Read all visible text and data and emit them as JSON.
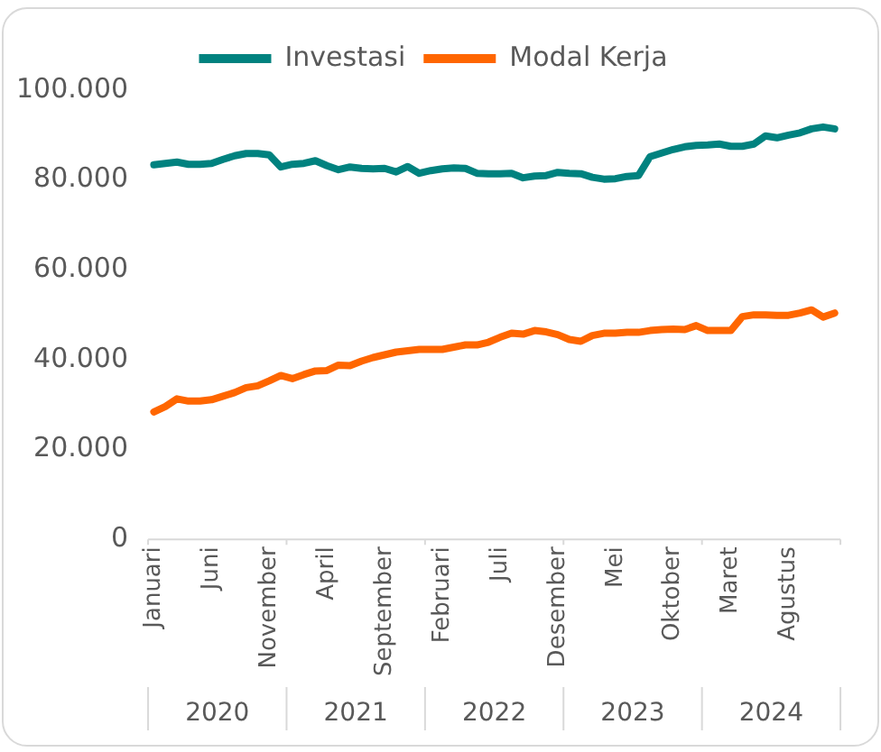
{
  "chart_data": {
    "type": "line",
    "categories": [
      "Januari",
      null,
      null,
      null,
      null,
      "Juni",
      null,
      null,
      null,
      null,
      "November",
      null,
      null,
      null,
      null,
      "April",
      null,
      null,
      null,
      null,
      "September",
      null,
      null,
      null,
      null,
      "Februari",
      null,
      null,
      null,
      null,
      "Juli",
      null,
      null,
      null,
      null,
      "Desember",
      null,
      null,
      null,
      null,
      "Mei",
      null,
      null,
      null,
      null,
      "Oktober",
      null,
      null,
      null,
      null,
      "Maret",
      null,
      null,
      null,
      null,
      "Agustus",
      null,
      null,
      null,
      null
    ],
    "series": [
      {
        "name": "Investasi",
        "color": "#00827f",
        "values": [
          83400,
          83700,
          84000,
          83500,
          83500,
          83700,
          84600,
          85400,
          85900,
          85900,
          85600,
          82900,
          83500,
          83700,
          84300,
          83200,
          82300,
          82900,
          82600,
          82500,
          82600,
          81800,
          83000,
          81500,
          82100,
          82500,
          82700,
          82600,
          81500,
          81400,
          81400,
          81500,
          80500,
          80900,
          81000,
          81700,
          81500,
          81400,
          80600,
          80200,
          80300,
          80800,
          81000,
          85200,
          86000,
          86800,
          87400,
          87700,
          87800,
          88000,
          87500,
          87500,
          88000,
          89800,
          89400,
          90000,
          90500,
          91400,
          91800,
          91400
        ]
      },
      {
        "name": "Modal Kerja",
        "color": "#ff6600",
        "values": [
          28400,
          29600,
          31300,
          30800,
          30800,
          31100,
          31900,
          32700,
          33800,
          34200,
          35300,
          36500,
          35800,
          36700,
          37500,
          37600,
          38800,
          38700,
          39700,
          40500,
          41100,
          41700,
          42000,
          42300,
          42300,
          42300,
          42800,
          43300,
          43300,
          43900,
          45000,
          45900,
          45700,
          46500,
          46200,
          45600,
          44500,
          44100,
          45400,
          45900,
          45900,
          46100,
          46100,
          46500,
          46700,
          46800,
          46700,
          47600,
          46500,
          46500,
          46500,
          49600,
          50000,
          50000,
          49900,
          49900,
          50400,
          51100,
          49500,
          50400
        ]
      }
    ],
    "ylim": [
      0,
      100000
    ],
    "yticks": [
      0,
      {
        "value": 20000,
        "label": "20.000"
      },
      {
        "value": 40000,
        "label": "40.000"
      },
      {
        "value": 60000,
        "label": "60.000"
      },
      {
        "value": 80000,
        "label": "80.000"
      },
      {
        "value": 100000,
        "label": "100.000"
      }
    ],
    "annotations": [
      "2020",
      "2021",
      "2022",
      "2023",
      "2024"
    ],
    "grid": false,
    "legend": "top",
    "marker": "none",
    "line_style": "solid"
  }
}
